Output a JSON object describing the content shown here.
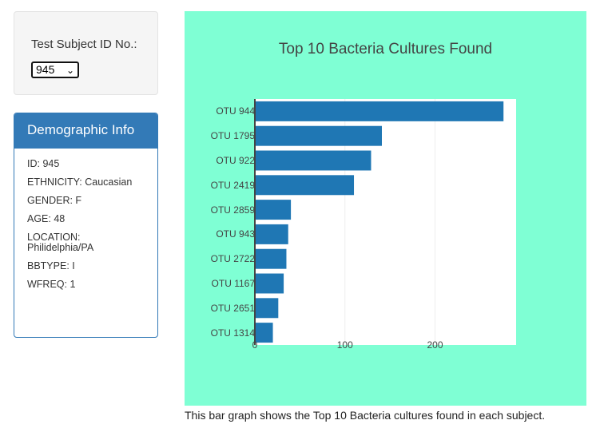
{
  "selector": {
    "label": "Test Subject ID No.:",
    "selected": "945"
  },
  "demographics": {
    "title": "Demographic Info",
    "lines": [
      "ID: 945",
      "ETHNICITY: Caucasian",
      "GENDER: F",
      "AGE: 48",
      "LOCATION: Philidelphia/PA",
      "BBTYPE: I",
      "WFREQ: 1"
    ]
  },
  "chart_data": {
    "type": "bar",
    "orientation": "horizontal",
    "title": "Top 10 Bacteria Cultures Found",
    "categories": [
      "OTU 944",
      "OTU 1795",
      "OTU 922",
      "OTU 2419",
      "OTU 2859",
      "OTU 943",
      "OTU 2722",
      "OTU 1167",
      "OTU 2651",
      "OTU 1314"
    ],
    "values": [
      276,
      141,
      129,
      110,
      40,
      37,
      35,
      32,
      26,
      20
    ],
    "xlim": [
      0,
      290
    ],
    "xticks": [
      0,
      100,
      200
    ],
    "grid": true,
    "bar_color": "#1f77b4",
    "background_color": "#7fffd4"
  },
  "caption": "This bar graph shows the Top 10 Bacteria cultures found in each subject."
}
